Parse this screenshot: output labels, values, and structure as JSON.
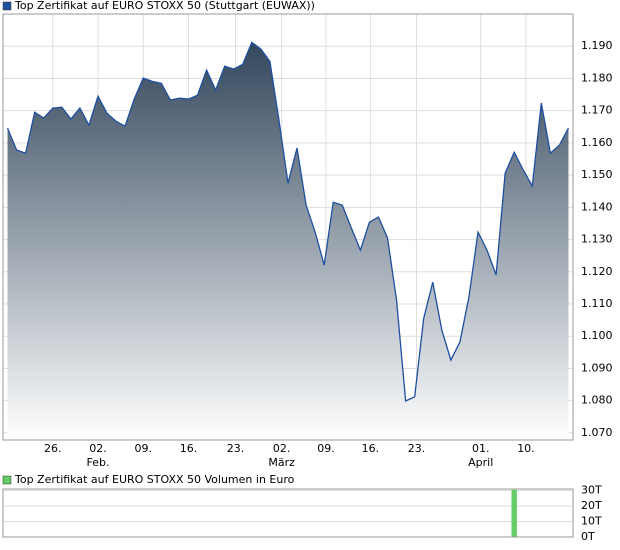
{
  "chart_data": [
    {
      "type": "area",
      "grid": true,
      "series": [
        {
          "name": "Top Zertifikat auf EURO STOXX 50  (Stuttgart (EUWAX))",
          "color": "#1f4fa0",
          "values": [
            1.1646,
            1.1578,
            1.1568,
            1.1695,
            1.1677,
            1.1708,
            1.1711,
            1.1674,
            1.1708,
            1.1655,
            1.1745,
            1.1692,
            1.1667,
            1.1652,
            1.1736,
            1.1801,
            1.1791,
            1.1785,
            1.1733,
            1.1739,
            1.1736,
            1.1748,
            1.1826,
            1.1764,
            1.1838,
            1.1829,
            1.1844,
            1.1912,
            1.1891,
            1.1853,
            1.1671,
            1.1475,
            1.1584,
            1.1407,
            1.1323,
            1.1221,
            1.1416,
            1.1407,
            1.1336,
            1.1267,
            1.1354,
            1.137,
            1.1305,
            1.1112,
            1.0799,
            1.0812,
            1.1056,
            1.1168,
            1.1019,
            1.0926,
            1.0982,
            1.1122,
            1.1323,
            1.1267,
            1.119,
            1.1506,
            1.1571,
            1.1516,
            1.1466,
            1.1724,
            1.1568,
            1.1593,
            1.1646
          ]
        }
      ],
      "xlim": [
        -0.5,
        62.5
      ],
      "xticks": [
        {
          "value": 5,
          "label": "26."
        },
        {
          "value": 10,
          "label": "02."
        },
        {
          "value": 15,
          "label": "09."
        },
        {
          "value": 20,
          "label": "16."
        },
        {
          "value": 25.2,
          "label": "23."
        },
        {
          "value": 30.3,
          "label": "02."
        },
        {
          "value": 35.2,
          "label": "09."
        },
        {
          "value": 40.1,
          "label": "16."
        },
        {
          "value": 45.2,
          "label": "23."
        },
        {
          "value": 52.3,
          "label": "01."
        },
        {
          "value": 57.3,
          "label": "10."
        }
      ],
      "x_month_labels": [
        {
          "value": 10,
          "label": "Feb."
        },
        {
          "value": 30.3,
          "label": "März"
        },
        {
          "value": 52.3,
          "label": "April"
        }
      ],
      "ylim": [
        1.0678,
        1.2
      ],
      "yticks": [
        {
          "value": 1.07,
          "label": "1.070"
        },
        {
          "value": 1.08,
          "label": "1.080"
        },
        {
          "value": 1.09,
          "label": "1.090"
        },
        {
          "value": 1.1,
          "label": "1.100"
        },
        {
          "value": 1.11,
          "label": "1.110"
        },
        {
          "value": 1.12,
          "label": "1.120"
        },
        {
          "value": 1.13,
          "label": "1.130"
        },
        {
          "value": 1.14,
          "label": "1.140"
        },
        {
          "value": 1.15,
          "label": "1.150"
        },
        {
          "value": 1.16,
          "label": "1.160"
        },
        {
          "value": 1.17,
          "label": "1.170"
        },
        {
          "value": 1.18,
          "label": "1.180"
        },
        {
          "value": 1.19,
          "label": "1.190"
        }
      ]
    },
    {
      "type": "bar",
      "grid": true,
      "series": [
        {
          "name": "Top Zertifikat auf EURO STOXX 50  Volumen in Euro",
          "color": "#66cc66",
          "values": [
            0,
            0,
            0,
            0,
            0,
            0,
            0,
            0,
            0,
            0,
            0,
            0,
            0,
            0,
            0,
            0,
            0,
            0,
            0,
            0,
            0,
            0,
            0,
            0,
            0,
            0,
            0,
            0,
            0,
            0,
            0,
            0,
            0,
            0,
            0,
            0,
            0,
            0,
            0,
            0,
            0,
            0,
            0,
            0,
            0,
            0,
            0,
            0,
            0,
            0,
            0,
            0,
            0,
            0,
            0,
            0,
            30500,
            0,
            0,
            0,
            0,
            0,
            0
          ]
        }
      ],
      "xlim": [
        -0.5,
        62.5
      ],
      "ylim": [
        0,
        31000
      ],
      "yticks": [
        {
          "value": 0,
          "label": "0T"
        },
        {
          "value": 10000,
          "label": "10T"
        },
        {
          "value": 20000,
          "label": "20T"
        },
        {
          "value": 30000,
          "label": "30T"
        }
      ]
    }
  ]
}
